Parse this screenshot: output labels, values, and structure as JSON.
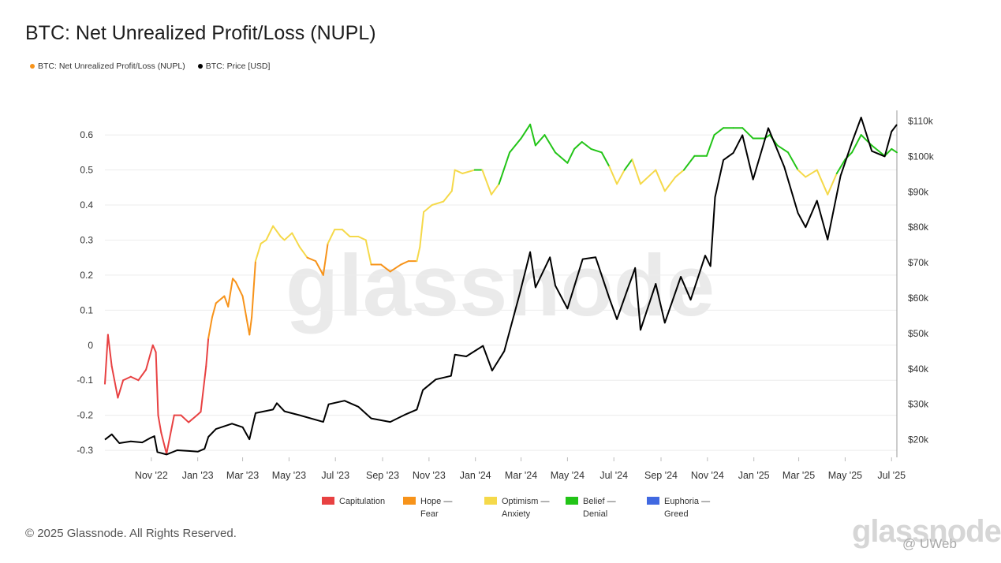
{
  "title": "BTC: Net Unrealized Profit/Loss (NUPL)",
  "legend": [
    {
      "label": "BTC: Net Unrealized Profit/Loss (NUPL)",
      "color": "#f7931a"
    },
    {
      "label": "BTC: Price [USD]",
      "color": "#000000"
    }
  ],
  "watermark": "glassnode",
  "footer": "© 2025 Glassnode. All Rights Reserved.",
  "brand": "glassnode",
  "overlay_user": "@ UWeb",
  "phases": [
    {
      "line1": "Capitulation",
      "line2": "",
      "color": "#e84142"
    },
    {
      "line1": "Hope —",
      "line2": "Fear",
      "color": "#f7931a"
    },
    {
      "line1": "Optimism —",
      "line2": "Anxiety",
      "color": "#f5d94a"
    },
    {
      "line1": "Belief —",
      "line2": "Denial",
      "color": "#22c417"
    },
    {
      "line1": "Euphoria —",
      "line2": "Greed",
      "color": "#4169e1"
    }
  ],
  "chart_data": {
    "type": "line",
    "title": "BTC: Net Unrealized Profit/Loss (NUPL)",
    "x_tick_labels": [
      "Nov '22",
      "Jan '23",
      "Mar '23",
      "May '23",
      "Jul '23",
      "Sep '23",
      "Nov '23",
      "Jan '24",
      "Mar '24",
      "May '24",
      "Jul '24",
      "Sep '24",
      "Nov '24",
      "Jan '25",
      "Mar '25",
      "May '25",
      "Jul '25"
    ],
    "x_range": [
      "2022-09-01",
      "2025-07-08"
    ],
    "y_left": {
      "ticks": [
        "-0.3",
        "-0.2",
        "-0.1",
        "0",
        "0.1",
        "0.2",
        "0.3",
        "0.4",
        "0.5",
        "0.6"
      ],
      "ylim": [
        -0.32,
        0.67
      ]
    },
    "y_right": {
      "ticks": [
        "$20k",
        "$30k",
        "$40k",
        "$50k",
        "$60k",
        "$70k",
        "$80k",
        "$90k",
        "$100k",
        "$110k"
      ],
      "ylim": [
        15000,
        113000
      ]
    },
    "grid": true,
    "legend_position": "top-left",
    "series": [
      {
        "name": "BTC: Net Unrealized Profit/Loss (NUPL)",
        "axis": "left",
        "color_by_zone": true,
        "points": [
          [
            "2022-09-01",
            -0.11
          ],
          [
            "2022-09-05",
            0.03
          ],
          [
            "2022-09-10",
            -0.06
          ],
          [
            "2022-09-18",
            -0.15
          ],
          [
            "2022-09-25",
            -0.1
          ],
          [
            "2022-10-05",
            -0.09
          ],
          [
            "2022-10-15",
            -0.1
          ],
          [
            "2022-10-25",
            -0.07
          ],
          [
            "2022-11-03",
            0.0
          ],
          [
            "2022-11-07",
            -0.02
          ],
          [
            "2022-11-10",
            -0.2
          ],
          [
            "2022-11-14",
            -0.25
          ],
          [
            "2022-11-21",
            -0.31
          ],
          [
            "2022-12-01",
            -0.2
          ],
          [
            "2022-12-10",
            -0.2
          ],
          [
            "2022-12-20",
            -0.22
          ],
          [
            "2022-12-31",
            -0.2
          ],
          [
            "2023-01-05",
            -0.19
          ],
          [
            "2023-01-12",
            -0.06
          ],
          [
            "2023-01-15",
            0.02
          ],
          [
            "2023-01-20",
            0.08
          ],
          [
            "2023-01-25",
            0.12
          ],
          [
            "2023-02-05",
            0.14
          ],
          [
            "2023-02-10",
            0.11
          ],
          [
            "2023-02-16",
            0.19
          ],
          [
            "2023-02-20",
            0.18
          ],
          [
            "2023-03-01",
            0.14
          ],
          [
            "2023-03-10",
            0.03
          ],
          [
            "2023-03-13",
            0.08
          ],
          [
            "2023-03-18",
            0.24
          ],
          [
            "2023-03-25",
            0.29
          ],
          [
            "2023-04-01",
            0.3
          ],
          [
            "2023-04-10",
            0.34
          ],
          [
            "2023-04-20",
            0.31
          ],
          [
            "2023-04-25",
            0.3
          ],
          [
            "2023-05-05",
            0.32
          ],
          [
            "2023-05-15",
            0.28
          ],
          [
            "2023-05-25",
            0.25
          ],
          [
            "2023-06-05",
            0.24
          ],
          [
            "2023-06-15",
            0.2
          ],
          [
            "2023-06-21",
            0.29
          ],
          [
            "2023-06-30",
            0.33
          ],
          [
            "2023-07-10",
            0.33
          ],
          [
            "2023-07-20",
            0.31
          ],
          [
            "2023-07-31",
            0.31
          ],
          [
            "2023-08-10",
            0.3
          ],
          [
            "2023-08-17",
            0.23
          ],
          [
            "2023-08-30",
            0.23
          ],
          [
            "2023-09-11",
            0.21
          ],
          [
            "2023-09-25",
            0.23
          ],
          [
            "2023-10-05",
            0.24
          ],
          [
            "2023-10-16",
            0.24
          ],
          [
            "2023-10-20",
            0.28
          ],
          [
            "2023-10-25",
            0.38
          ],
          [
            "2023-11-05",
            0.4
          ],
          [
            "2023-11-20",
            0.41
          ],
          [
            "2023-12-01",
            0.44
          ],
          [
            "2023-12-05",
            0.5
          ],
          [
            "2023-12-15",
            0.49
          ],
          [
            "2023-12-31",
            0.5
          ],
          [
            "2024-01-10",
            0.5
          ],
          [
            "2024-01-22",
            0.43
          ],
          [
            "2024-02-01",
            0.46
          ],
          [
            "2024-02-15",
            0.55
          ],
          [
            "2024-03-01",
            0.59
          ],
          [
            "2024-03-13",
            0.63
          ],
          [
            "2024-03-20",
            0.57
          ],
          [
            "2024-04-01",
            0.6
          ],
          [
            "2024-04-15",
            0.55
          ],
          [
            "2024-05-01",
            0.52
          ],
          [
            "2024-05-10",
            0.56
          ],
          [
            "2024-05-20",
            0.58
          ],
          [
            "2024-06-01",
            0.56
          ],
          [
            "2024-06-15",
            0.55
          ],
          [
            "2024-06-25",
            0.51
          ],
          [
            "2024-07-05",
            0.46
          ],
          [
            "2024-07-15",
            0.5
          ],
          [
            "2024-07-25",
            0.53
          ],
          [
            "2024-08-05",
            0.46
          ],
          [
            "2024-08-15",
            0.48
          ],
          [
            "2024-08-25",
            0.5
          ],
          [
            "2024-09-06",
            0.44
          ],
          [
            "2024-09-20",
            0.48
          ],
          [
            "2024-10-01",
            0.5
          ],
          [
            "2024-10-15",
            0.54
          ],
          [
            "2024-10-31",
            0.54
          ],
          [
            "2024-11-10",
            0.6
          ],
          [
            "2024-11-22",
            0.62
          ],
          [
            "2024-12-05",
            0.62
          ],
          [
            "2024-12-17",
            0.62
          ],
          [
            "2024-12-31",
            0.59
          ],
          [
            "2025-01-15",
            0.59
          ],
          [
            "2025-01-22",
            0.6
          ],
          [
            "2025-02-01",
            0.57
          ],
          [
            "2025-02-15",
            0.55
          ],
          [
            "2025-02-28",
            0.5
          ],
          [
            "2025-03-10",
            0.48
          ],
          [
            "2025-03-25",
            0.5
          ],
          [
            "2025-04-08",
            0.43
          ],
          [
            "2025-04-20",
            0.49
          ],
          [
            "2025-05-01",
            0.53
          ],
          [
            "2025-05-10",
            0.55
          ],
          [
            "2025-05-22",
            0.6
          ],
          [
            "2025-06-05",
            0.57
          ],
          [
            "2025-06-22",
            0.54
          ],
          [
            "2025-07-01",
            0.56
          ],
          [
            "2025-07-08",
            0.55
          ]
        ]
      },
      {
        "name": "BTC: Price [USD]",
        "axis": "right",
        "color": "#000000",
        "points": [
          [
            "2022-09-01",
            20000
          ],
          [
            "2022-09-10",
            21500
          ],
          [
            "2022-09-20",
            19000
          ],
          [
            "2022-10-05",
            19500
          ],
          [
            "2022-10-20",
            19200
          ],
          [
            "2022-10-31",
            20500
          ],
          [
            "2022-11-05",
            21000
          ],
          [
            "2022-11-09",
            16500
          ],
          [
            "2022-11-21",
            15800
          ],
          [
            "2022-12-05",
            17000
          ],
          [
            "2022-12-20",
            16800
          ],
          [
            "2023-01-01",
            16600
          ],
          [
            "2023-01-10",
            17400
          ],
          [
            "2023-01-15",
            20800
          ],
          [
            "2023-01-25",
            23000
          ],
          [
            "2023-02-15",
            24500
          ],
          [
            "2023-03-01",
            23500
          ],
          [
            "2023-03-10",
            20100
          ],
          [
            "2023-03-18",
            27500
          ],
          [
            "2023-04-10",
            28500
          ],
          [
            "2023-04-15",
            30300
          ],
          [
            "2023-04-25",
            28000
          ],
          [
            "2023-05-15",
            26900
          ],
          [
            "2023-06-15",
            25000
          ],
          [
            "2023-06-22",
            30000
          ],
          [
            "2023-07-13",
            31000
          ],
          [
            "2023-07-31",
            29300
          ],
          [
            "2023-08-17",
            26000
          ],
          [
            "2023-09-11",
            25000
          ],
          [
            "2023-09-30",
            27000
          ],
          [
            "2023-10-16",
            28500
          ],
          [
            "2023-10-24",
            34000
          ],
          [
            "2023-11-10",
            37000
          ],
          [
            "2023-11-30",
            38000
          ],
          [
            "2023-12-05",
            44000
          ],
          [
            "2023-12-20",
            43500
          ],
          [
            "2024-01-11",
            46500
          ],
          [
            "2024-01-23",
            39500
          ],
          [
            "2024-02-08",
            45000
          ],
          [
            "2024-02-28",
            61000
          ],
          [
            "2024-03-13",
            73000
          ],
          [
            "2024-03-20",
            63000
          ],
          [
            "2024-04-08",
            71500
          ],
          [
            "2024-04-15",
            63500
          ],
          [
            "2024-05-01",
            57000
          ],
          [
            "2024-05-21",
            71000
          ],
          [
            "2024-06-07",
            71500
          ],
          [
            "2024-06-25",
            60000
          ],
          [
            "2024-07-05",
            54000
          ],
          [
            "2024-07-29",
            68500
          ],
          [
            "2024-08-05",
            51000
          ],
          [
            "2024-08-25",
            64000
          ],
          [
            "2024-09-06",
            53000
          ],
          [
            "2024-09-27",
            66000
          ],
          [
            "2024-10-10",
            59500
          ],
          [
            "2024-10-29",
            72000
          ],
          [
            "2024-11-05",
            69000
          ],
          [
            "2024-11-11",
            88500
          ],
          [
            "2024-11-22",
            99000
          ],
          [
            "2024-12-05",
            101000
          ],
          [
            "2024-12-17",
            106000
          ],
          [
            "2024-12-31",
            93500
          ],
          [
            "2025-01-20",
            108000
          ],
          [
            "2025-02-10",
            97000
          ],
          [
            "2025-02-28",
            84000
          ],
          [
            "2025-03-10",
            80000
          ],
          [
            "2025-03-25",
            87500
          ],
          [
            "2025-04-08",
            76500
          ],
          [
            "2025-04-25",
            94500
          ],
          [
            "2025-05-10",
            104000
          ],
          [
            "2025-05-22",
            111000
          ],
          [
            "2025-06-05",
            101500
          ],
          [
            "2025-06-22",
            100000
          ],
          [
            "2025-07-01",
            107000
          ],
          [
            "2025-07-08",
            109000
          ]
        ]
      }
    ]
  }
}
